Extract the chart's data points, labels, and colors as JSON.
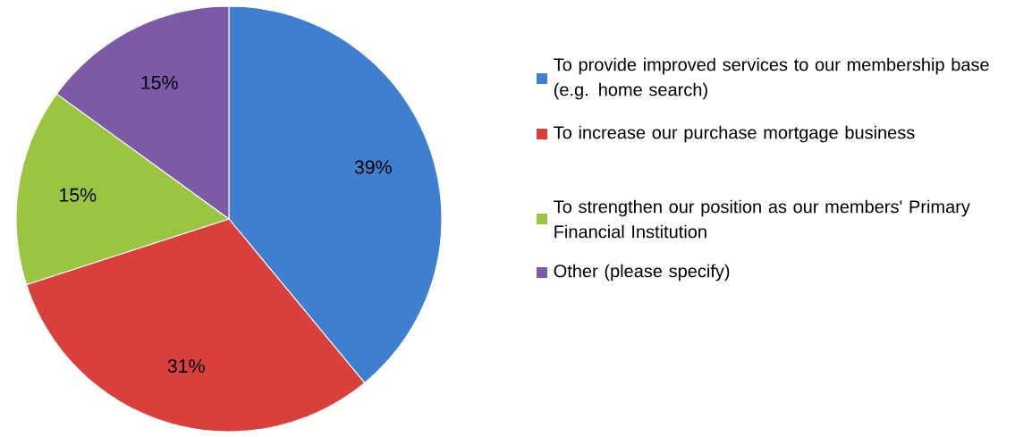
{
  "chart_data": {
    "type": "pie",
    "categories": [
      "To provide improved services to our membership base (e.g. home search)",
      "To increase our purchase mortgage business",
      "To strengthen our position as our members' Primary Financial Institution",
      "Other (please specify)"
    ],
    "values": [
      39,
      31,
      15,
      15
    ],
    "value_labels": [
      "39%",
      "31%",
      "15%",
      "15%"
    ],
    "colors": [
      "#3f7fd0",
      "#d9403b",
      "#9bc540",
      "#7d5aa6"
    ],
    "legend": "right"
  }
}
